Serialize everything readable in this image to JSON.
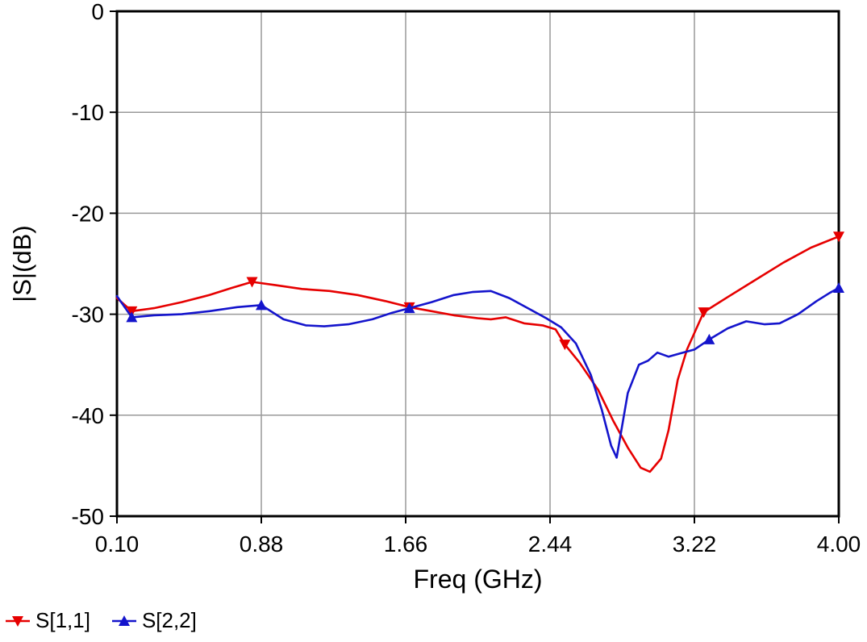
{
  "chart_data": {
    "type": "line",
    "title": "",
    "xlabel": "Freq (GHz)",
    "ylabel": "|S|(dB)",
    "xlim": [
      0.1,
      4.0
    ],
    "ylim": [
      -50,
      0
    ],
    "xticks": [
      0.1,
      0.88,
      1.66,
      2.44,
      3.22,
      4.0
    ],
    "xtick_labels": [
      "0.10",
      "0.88",
      "1.66",
      "2.44",
      "3.22",
      "4.00"
    ],
    "yticks": [
      0,
      -10,
      -20,
      -30,
      -40,
      -50
    ],
    "ytick_labels": [
      "0",
      "-10",
      "-20",
      "-30",
      "-40",
      "-50"
    ],
    "grid": true,
    "grid_color": "#999999",
    "axis_color": "#000000",
    "background_color": "#ffffff",
    "legend_position": "bottom-left",
    "series": [
      {
        "name": "S[1,1]",
        "color": "#e60000",
        "marker": "triangle-down",
        "points": [
          [
            0.1,
            -28.4
          ],
          [
            0.18,
            -29.7
          ],
          [
            0.3,
            -29.4
          ],
          [
            0.45,
            -28.8
          ],
          [
            0.6,
            -28.1
          ],
          [
            0.72,
            -27.4
          ],
          [
            0.83,
            -26.8
          ],
          [
            0.95,
            -27.1
          ],
          [
            1.1,
            -27.5
          ],
          [
            1.25,
            -27.7
          ],
          [
            1.4,
            -28.1
          ],
          [
            1.55,
            -28.7
          ],
          [
            1.68,
            -29.3
          ],
          [
            1.8,
            -29.7
          ],
          [
            1.92,
            -30.1
          ],
          [
            2.05,
            -30.4
          ],
          [
            2.12,
            -30.5
          ],
          [
            2.2,
            -30.3
          ],
          [
            2.3,
            -30.9
          ],
          [
            2.4,
            -31.1
          ],
          [
            2.47,
            -31.5
          ],
          [
            2.52,
            -33.0
          ],
          [
            2.6,
            -34.8
          ],
          [
            2.7,
            -37.5
          ],
          [
            2.78,
            -40.5
          ],
          [
            2.86,
            -43.2
          ],
          [
            2.93,
            -45.2
          ],
          [
            2.98,
            -45.6
          ],
          [
            3.04,
            -44.3
          ],
          [
            3.08,
            -41.5
          ],
          [
            3.13,
            -36.5
          ],
          [
            3.18,
            -33.5
          ],
          [
            3.27,
            -29.8
          ],
          [
            3.4,
            -28.3
          ],
          [
            3.55,
            -26.6
          ],
          [
            3.7,
            -24.9
          ],
          [
            3.85,
            -23.4
          ],
          [
            4.0,
            -22.3
          ]
        ],
        "marker_points": [
          [
            0.18,
            -29.7
          ],
          [
            0.83,
            -26.8
          ],
          [
            1.68,
            -29.3
          ],
          [
            2.52,
            -33.0
          ],
          [
            3.27,
            -29.8
          ],
          [
            4.0,
            -22.3
          ]
        ]
      },
      {
        "name": "S[2,2]",
        "color": "#1414cc",
        "marker": "triangle-up",
        "points": [
          [
            0.1,
            -28.2
          ],
          [
            0.18,
            -30.3
          ],
          [
            0.3,
            -30.1
          ],
          [
            0.45,
            -30.0
          ],
          [
            0.6,
            -29.7
          ],
          [
            0.75,
            -29.3
          ],
          [
            0.88,
            -29.1
          ],
          [
            1.0,
            -30.5
          ],
          [
            1.12,
            -31.1
          ],
          [
            1.22,
            -31.2
          ],
          [
            1.35,
            -31.0
          ],
          [
            1.48,
            -30.5
          ],
          [
            1.58,
            -29.9
          ],
          [
            1.68,
            -29.4
          ],
          [
            1.8,
            -28.8
          ],
          [
            1.92,
            -28.1
          ],
          [
            2.02,
            -27.8
          ],
          [
            2.12,
            -27.7
          ],
          [
            2.22,
            -28.4
          ],
          [
            2.32,
            -29.4
          ],
          [
            2.42,
            -30.4
          ],
          [
            2.5,
            -31.3
          ],
          [
            2.58,
            -32.9
          ],
          [
            2.66,
            -36.0
          ],
          [
            2.72,
            -39.5
          ],
          [
            2.77,
            -43.0
          ],
          [
            2.8,
            -44.2
          ],
          [
            2.86,
            -37.8
          ],
          [
            2.92,
            -35.0
          ],
          [
            2.97,
            -34.6
          ],
          [
            3.02,
            -33.8
          ],
          [
            3.08,
            -34.2
          ],
          [
            3.14,
            -33.9
          ],
          [
            3.22,
            -33.5
          ],
          [
            3.3,
            -32.5
          ],
          [
            3.4,
            -31.4
          ],
          [
            3.5,
            -30.7
          ],
          [
            3.6,
            -31.0
          ],
          [
            3.68,
            -30.9
          ],
          [
            3.78,
            -30.0
          ],
          [
            3.88,
            -28.7
          ],
          [
            3.95,
            -27.9
          ],
          [
            4.0,
            -27.4
          ]
        ],
        "marker_points": [
          [
            0.18,
            -30.3
          ],
          [
            0.88,
            -29.1
          ],
          [
            1.68,
            -29.4
          ],
          [
            3.3,
            -32.5
          ],
          [
            4.0,
            -27.4
          ]
        ]
      }
    ]
  }
}
